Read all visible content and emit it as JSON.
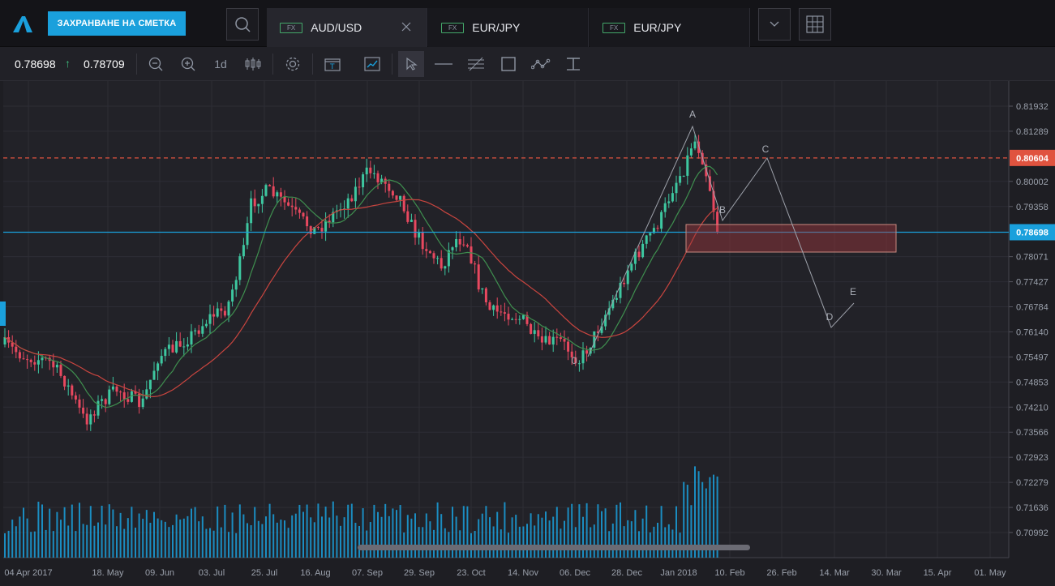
{
  "header": {
    "save_button": "ЗАХРАНВАНЕ НА СМЕТКА",
    "tabs": [
      {
        "badge": "FX",
        "symbol": "AUD/USD"
      },
      {
        "badge": "FX",
        "symbol": "EUR/JPY"
      },
      {
        "badge": "FX",
        "symbol": "EUR/JPY"
      }
    ]
  },
  "toolbar": {
    "bid": "0.78698",
    "ask": "0.78709",
    "arrow": "↑",
    "timeframe": "1d"
  },
  "colors": {
    "bull": "#3ec7a0",
    "bear": "#e8485f",
    "ma_fast": "#3f8f4f",
    "ma_slow": "#c9453f",
    "resistance": "#e0533f",
    "current_line": "#1aa0dc",
    "volume": "#1aa0dc"
  },
  "chart_data": {
    "type": "candlestick",
    "y_ticks": [
      "0.81932",
      "0.81289",
      "0.80002",
      "0.79358",
      "0.78071",
      "0.77427",
      "0.76784",
      "0.76140",
      "0.75497",
      "0.74853",
      "0.74210",
      "0.73566",
      "0.72923",
      "0.72279",
      "0.71636",
      "0.70992"
    ],
    "x_ticks": [
      "04 Apr 2017",
      "18. May",
      "09. Jun",
      "03. Jul",
      "25. Jul",
      "16. Aug",
      "07. Sep",
      "29. Sep",
      "23. Oct",
      "14. Nov",
      "06. Dec",
      "28. Dec",
      "Jan 2018",
      "10. Feb",
      "26. Feb",
      "14. Mar",
      "30. Mar",
      "15. Apr",
      "01. May"
    ],
    "resistance_label": "0.80604",
    "current_label": "0.78698",
    "wave_labels": [
      "A",
      "B",
      "C",
      "D",
      "E",
      "0"
    ]
  }
}
